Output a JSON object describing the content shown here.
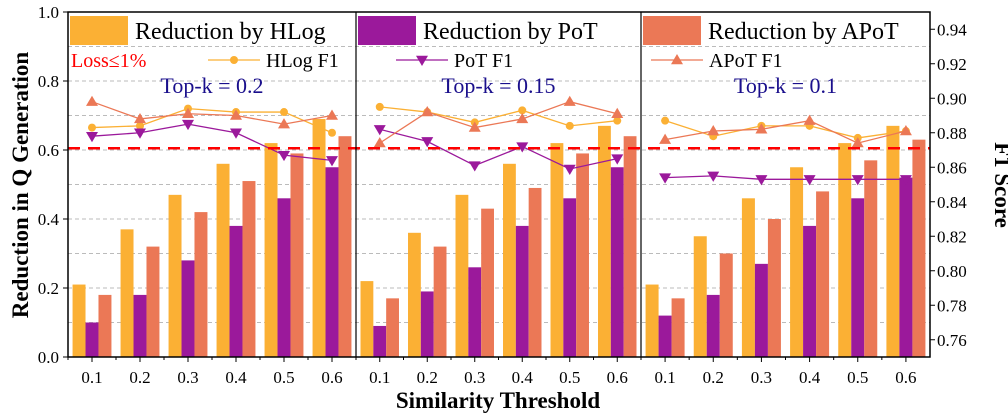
{
  "chart_data": {
    "type": "bar",
    "xlabel": "Similarity Threshold",
    "ylabel": "Reduction in Q Generation",
    "ylabel_right": "F1 Score",
    "ylim": [
      0,
      1.0
    ],
    "ylim_right": [
      0.75,
      0.95
    ],
    "yticks": [
      "0.0",
      "0.2",
      "0.4",
      "0.6",
      "0.8",
      "1.0"
    ],
    "yticks_right": [
      "0.76",
      "0.78",
      "0.80",
      "0.82",
      "0.84",
      "0.86",
      "0.88",
      "0.90",
      "0.92",
      "0.94"
    ],
    "grid": true,
    "categories": [
      "0.1",
      "0.2",
      "0.3",
      "0.4",
      "0.5",
      "0.6"
    ],
    "threshold_line": {
      "label": "Loss≤1%",
      "y": 0.605,
      "color": "#FF0000"
    },
    "colors": {
      "HLog": "#FBB034",
      "PoT": "#9B199B",
      "APoT": "#EB7856",
      "topk": "#1A0F8C"
    },
    "panels": [
      {
        "topk_label": "Top-k = 0.2",
        "bar_legend": "Reduction by HLog",
        "bar_key": "HLog",
        "line_legend": "HLog F1",
        "bars": {
          "HLog": [
            0.21,
            0.37,
            0.47,
            0.56,
            0.62,
            0.69
          ],
          "PoT": [
            0.1,
            0.18,
            0.28,
            0.38,
            0.46,
            0.55
          ],
          "APoT": [
            0.18,
            0.32,
            0.42,
            0.51,
            0.59,
            0.64
          ]
        },
        "f1": {
          "HLog": [
            0.883,
            0.884,
            0.894,
            0.892,
            0.892,
            0.88
          ],
          "PoT": [
            0.878,
            0.88,
            0.885,
            0.88,
            0.867,
            0.864
          ],
          "APoT": [
            0.898,
            0.888,
            0.891,
            0.89,
            0.885,
            0.89
          ]
        }
      },
      {
        "topk_label": "Top-k = 0.15",
        "bar_legend": "Reduction by PoT",
        "bar_key": "PoT",
        "line_legend": "PoT F1",
        "bars": {
          "HLog": [
            0.22,
            0.36,
            0.47,
            0.56,
            0.62,
            0.67
          ],
          "PoT": [
            0.09,
            0.19,
            0.26,
            0.38,
            0.46,
            0.55
          ],
          "APoT": [
            0.17,
            0.32,
            0.43,
            0.49,
            0.59,
            0.64
          ]
        },
        "f1": {
          "HLog": [
            0.895,
            0.892,
            0.886,
            0.893,
            0.884,
            0.887
          ],
          "PoT": [
            0.882,
            0.875,
            0.861,
            0.872,
            0.859,
            0.865
          ],
          "APoT": [
            0.874,
            0.892,
            0.883,
            0.888,
            0.898,
            0.891
          ]
        }
      },
      {
        "topk_label": "Top-k = 0.1",
        "bar_legend": "Reduction by APoT",
        "bar_key": "APoT",
        "line_legend": "APoT F1",
        "bars": {
          "HLog": [
            0.21,
            0.35,
            0.46,
            0.55,
            0.62,
            0.67
          ],
          "PoT": [
            0.12,
            0.18,
            0.27,
            0.38,
            0.46,
            0.52
          ],
          "APoT": [
            0.17,
            0.3,
            0.4,
            0.48,
            0.57,
            0.63
          ]
        },
        "f1": {
          "HLog": [
            0.887,
            0.878,
            0.884,
            0.884,
            0.877,
            0.881
          ],
          "PoT": [
            0.854,
            0.855,
            0.853,
            0.853,
            0.853,
            0.853
          ],
          "APoT": [
            0.876,
            0.881,
            0.882,
            0.887,
            0.874,
            0.881
          ]
        }
      }
    ]
  }
}
